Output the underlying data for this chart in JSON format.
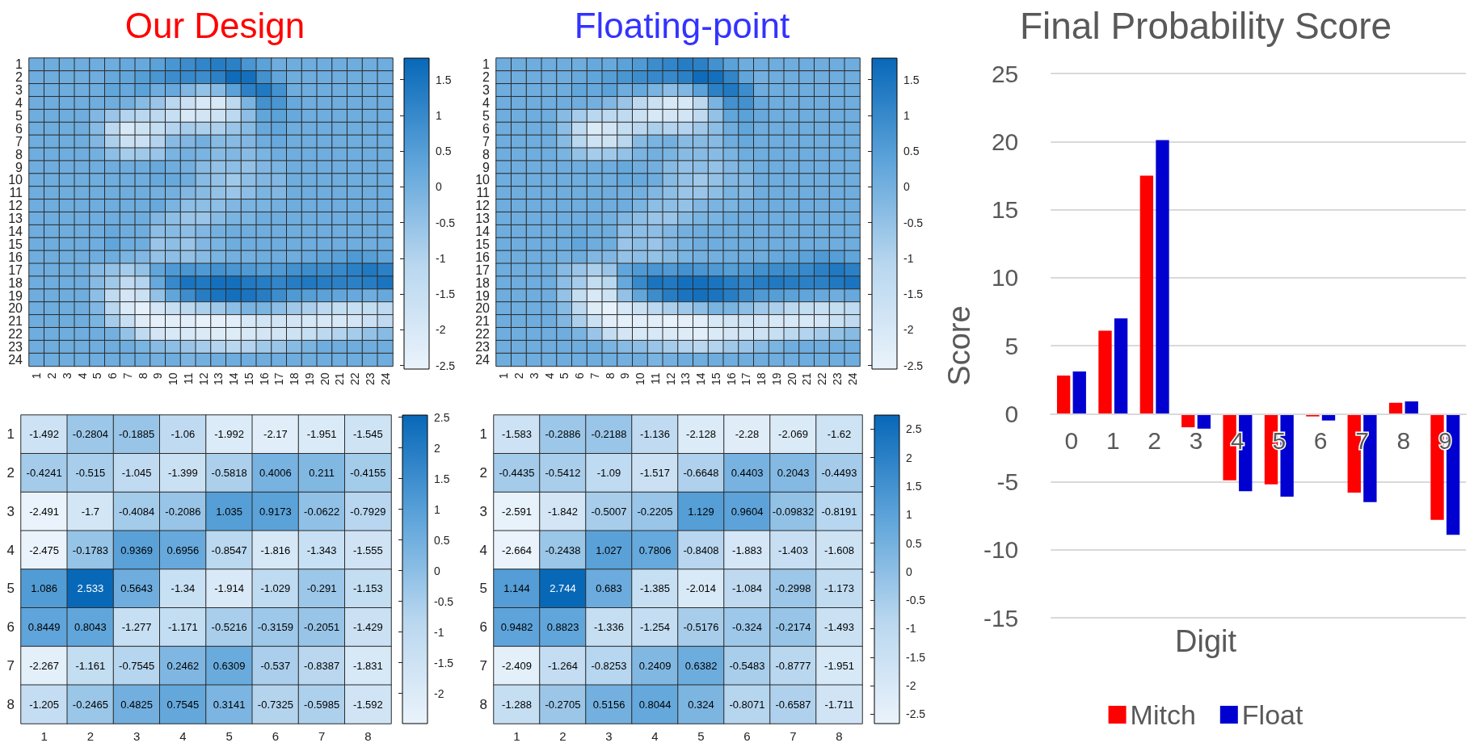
{
  "chart_data": [
    {
      "type": "heatmap",
      "title": "Our Design",
      "categories": [
        "1",
        "2",
        "3",
        "4",
        "5",
        "6",
        "7",
        "8",
        "9",
        "10",
        "11",
        "12",
        "13",
        "14",
        "15",
        "16",
        "17",
        "18",
        "19",
        "20",
        "21",
        "22",
        "23",
        "24"
      ],
      "y_categories": [
        "1",
        "2",
        "3",
        "4",
        "5",
        "6",
        "7",
        "8",
        "9",
        "10",
        "11",
        "12",
        "13",
        "14",
        "15",
        "16",
        "17",
        "18",
        "19",
        "20",
        "21",
        "22",
        "23",
        "24"
      ],
      "clim": [
        -2.55,
        1.8
      ],
      "cticks": [
        1.5,
        1,
        0.5,
        0,
        -0.5,
        -1,
        -1.5,
        -2,
        -2.5
      ],
      "cells": [
        [
          0.1,
          0.1,
          0.1,
          0.1,
          0.1,
          0.1,
          0.2,
          0.2,
          0.4,
          0.7,
          0.9,
          1.1,
          1.3,
          1.2,
          0.7,
          0.4,
          0.1,
          0.1,
          0.1,
          0.1,
          0.1,
          0.1,
          0.1,
          0.1
        ],
        [
          0.1,
          0.1,
          0.1,
          0.1,
          0.1,
          0.2,
          0.3,
          0.5,
          0.7,
          0.9,
          1.0,
          0.9,
          1.2,
          1.7,
          1.6,
          0.8,
          0.3,
          0.1,
          0.1,
          0.1,
          0.1,
          0.1,
          0.1,
          0.1
        ],
        [
          0.1,
          0.1,
          0.1,
          0.1,
          0.1,
          0.3,
          0.2,
          0.4,
          0.1,
          0.2,
          -0.2,
          -0.5,
          -0.3,
          0.4,
          1.2,
          1.4,
          0.8,
          0.1,
          0.1,
          0.1,
          0.1,
          0.1,
          0.1,
          0.1
        ],
        [
          0.1,
          0.1,
          0.1,
          0.1,
          0.1,
          0.1,
          0.0,
          -0.3,
          -0.6,
          -1.1,
          -1.6,
          -2.0,
          -2.0,
          -1.2,
          -0.1,
          0.8,
          0.7,
          0.2,
          0.1,
          0.1,
          0.1,
          0.1,
          0.1,
          0.1
        ],
        [
          0.1,
          0.1,
          0.1,
          0.1,
          -0.2,
          -0.6,
          -1.0,
          -1.1,
          -1.2,
          -1.5,
          -2.0,
          -1.8,
          -1.7,
          -1.2,
          -0.4,
          0.3,
          0.4,
          0.2,
          0.1,
          0.1,
          0.1,
          0.1,
          0.1,
          0.1
        ],
        [
          0.1,
          0.1,
          0.1,
          0.1,
          -0.3,
          -1.2,
          -2.0,
          -1.7,
          -1.4,
          -1.0,
          -0.8,
          -0.9,
          -0.9,
          -0.6,
          -0.3,
          0.2,
          0.3,
          0.1,
          0.1,
          0.1,
          0.1,
          0.1,
          0.1,
          0.1
        ],
        [
          0.1,
          0.1,
          0.1,
          0.1,
          -0.2,
          -0.9,
          -1.6,
          -1.6,
          -1.0,
          -0.3,
          -0.2,
          0.0,
          -0.3,
          -0.3,
          -0.2,
          0.1,
          0.2,
          0.1,
          0.1,
          0.1,
          0.1,
          0.1,
          0.1,
          0.1
        ],
        [
          0.1,
          0.1,
          0.1,
          0.1,
          0.0,
          -0.4,
          -0.8,
          -0.7,
          -0.6,
          -0.1,
          0.0,
          -0.1,
          -0.3,
          -0.2,
          -0.3,
          -0.1,
          0.1,
          0.1,
          0.1,
          0.1,
          0.1,
          0.1,
          0.1,
          0.1
        ],
        [
          0.1,
          0.1,
          0.1,
          0.1,
          0.1,
          0.1,
          0.1,
          0.1,
          0.2,
          0.1,
          0.0,
          -0.3,
          -0.5,
          -0.4,
          -0.5,
          -0.2,
          -0.1,
          0.1,
          0.1,
          0.1,
          0.1,
          0.1,
          0.1,
          0.1
        ],
        [
          0.1,
          0.1,
          0.1,
          0.1,
          0.1,
          0.1,
          0.1,
          0.1,
          0.2,
          0.2,
          0.1,
          -0.3,
          -0.5,
          -0.7,
          -0.4,
          -0.2,
          -0.2,
          0.1,
          0.1,
          0.1,
          0.1,
          0.1,
          0.1,
          0.1
        ],
        [
          0.1,
          0.1,
          0.1,
          0.1,
          0.1,
          0.1,
          0.1,
          0.1,
          0.0,
          0.0,
          -0.2,
          -0.3,
          -0.5,
          -0.6,
          -0.4,
          -0.1,
          -0.2,
          0.1,
          0.1,
          0.1,
          0.1,
          0.1,
          0.1,
          0.1
        ],
        [
          0.1,
          0.1,
          0.1,
          0.1,
          0.1,
          0.1,
          0.1,
          0.1,
          0.2,
          -0.1,
          -0.4,
          -0.4,
          -0.4,
          -0.2,
          -0.1,
          -0.1,
          0.0,
          0.1,
          0.1,
          0.1,
          0.1,
          0.1,
          0.1,
          0.1
        ],
        [
          0.1,
          0.1,
          0.1,
          0.1,
          0.1,
          0.1,
          0.1,
          0.1,
          -0.2,
          -0.4,
          -0.6,
          -0.6,
          -0.3,
          -0.1,
          -0.1,
          0.1,
          0.1,
          0.1,
          0.1,
          0.1,
          0.1,
          0.1,
          0.1,
          0.1
        ],
        [
          0.1,
          0.1,
          0.1,
          0.1,
          0.1,
          0.2,
          0.1,
          0.1,
          -0.4,
          -0.3,
          -0.4,
          -0.2,
          0.0,
          0.1,
          0.1,
          0.1,
          0.1,
          0.1,
          0.1,
          0.1,
          0.1,
          0.1,
          0.1,
          0.1
        ],
        [
          0.1,
          0.1,
          0.1,
          0.1,
          0.1,
          0.3,
          0.1,
          0.1,
          -0.6,
          -0.4,
          -0.6,
          -0.2,
          -0.1,
          0.1,
          0.1,
          0.1,
          0.1,
          0.1,
          0.1,
          0.1,
          0.1,
          0.1,
          0.1,
          0.1
        ],
        [
          0.1,
          0.1,
          0.1,
          0.1,
          0.1,
          0.1,
          -0.1,
          -0.2,
          -0.5,
          -0.4,
          -0.5,
          -0.3,
          -0.1,
          0.0,
          0.0,
          0.1,
          0.1,
          0.1,
          0.2,
          0.3,
          0.4,
          0.6,
          0.5,
          0.3
        ],
        [
          0.1,
          0.1,
          0.1,
          0.1,
          -0.3,
          -0.5,
          -0.8,
          -0.5,
          0.3,
          0.6,
          0.7,
          0.6,
          0.8,
          0.7,
          0.6,
          0.5,
          0.6,
          0.8,
          0.9,
          0.9,
          1.0,
          1.2,
          1.4,
          1.2
        ],
        [
          0.1,
          0.1,
          0.1,
          0.1,
          -0.3,
          -0.7,
          -1.3,
          -1.0,
          0.2,
          1.0,
          1.5,
          1.4,
          1.6,
          1.6,
          1.4,
          1.3,
          1.1,
          1.3,
          1.4,
          1.3,
          1.2,
          1.2,
          1.3,
          1.5
        ],
        [
          0.1,
          0.1,
          0.1,
          0.1,
          -0.4,
          -1.3,
          -1.9,
          -1.6,
          -0.5,
          0.3,
          0.9,
          1.3,
          1.5,
          1.6,
          1.5,
          1.3,
          0.9,
          0.6,
          0.5,
          0.4,
          0.3,
          0.2,
          0.1,
          0.2
        ],
        [
          0.1,
          0.1,
          0.1,
          0.1,
          -0.2,
          -1.1,
          -2.1,
          -2.4,
          -1.9,
          -1.5,
          -1.2,
          -0.9,
          -0.7,
          -0.4,
          -0.1,
          -0.1,
          -0.4,
          -0.7,
          -0.9,
          -1.2,
          -1.4,
          -1.5,
          -1.4,
          -1.3
        ],
        [
          0.1,
          0.1,
          0.1,
          0.1,
          -0.1,
          -0.8,
          -1.5,
          -2.2,
          -2.4,
          -2.3,
          -2.3,
          -2.5,
          -2.4,
          -2.3,
          -2.0,
          -1.8,
          -1.8,
          -1.9,
          -2.0,
          -2.0,
          -2.0,
          -1.9,
          -1.6,
          -1.3
        ],
        [
          0.1,
          0.1,
          0.1,
          0.1,
          0.1,
          0.0,
          -0.5,
          -1.3,
          -1.9,
          -2.0,
          -2.0,
          -2.1,
          -2.2,
          -2.2,
          -2.0,
          -1.9,
          -1.8,
          -1.7,
          -1.5,
          -1.2,
          -1.0,
          -0.8,
          -0.5,
          -0.3
        ],
        [
          0.1,
          0.1,
          0.1,
          0.1,
          0.1,
          0.1,
          0.1,
          -0.1,
          -0.3,
          -0.4,
          -0.6,
          -0.8,
          -1.0,
          -1.1,
          -1.0,
          -0.7,
          -0.6,
          -0.3,
          -0.1,
          0.1,
          0.1,
          0.1,
          0.1,
          0.1
        ],
        [
          0.1,
          0.1,
          0.1,
          0.1,
          0.1,
          0.1,
          0.1,
          0.1,
          0.0,
          0.1,
          -0.1,
          0.0,
          0.1,
          0.1,
          0.1,
          0.1,
          0.1,
          0.1,
          0.1,
          0.1,
          0.1,
          0.1,
          0.1,
          0.1
        ]
      ]
    },
    {
      "type": "heatmap",
      "title": "Floating-point",
      "categories": [
        "1",
        "2",
        "3",
        "4",
        "5",
        "6",
        "7",
        "8",
        "9",
        "10",
        "11",
        "12",
        "13",
        "14",
        "15",
        "16",
        "17",
        "18",
        "19",
        "20",
        "21",
        "22",
        "23",
        "24"
      ],
      "y_categories": [
        "1",
        "2",
        "3",
        "4",
        "5",
        "6",
        "7",
        "8",
        "9",
        "10",
        "11",
        "12",
        "13",
        "14",
        "15",
        "16",
        "17",
        "18",
        "19",
        "20",
        "21",
        "22",
        "23",
        "24"
      ],
      "clim": [
        -2.55,
        1.8
      ],
      "cticks": [
        1.5,
        1,
        0.5,
        0,
        -0.5,
        -1,
        -1.5,
        -2,
        -2.5
      ],
      "cells": [
        [
          0.1,
          0.1,
          0.1,
          0.1,
          0.1,
          0.1,
          0.2,
          0.2,
          0.4,
          0.6,
          0.9,
          1.1,
          1.3,
          1.2,
          0.8,
          0.4,
          0.1,
          0.1,
          0.1,
          0.1,
          0.1,
          0.1,
          0.1,
          0.1
        ],
        [
          0.1,
          0.1,
          0.1,
          0.1,
          0.1,
          0.2,
          0.3,
          0.5,
          0.7,
          0.9,
          1.0,
          1.0,
          1.2,
          1.7,
          1.6,
          1.1,
          0.3,
          0.0,
          0.1,
          0.1,
          0.1,
          0.1,
          0.1,
          0.1
        ],
        [
          0.1,
          0.1,
          0.1,
          0.1,
          0.1,
          0.3,
          0.2,
          0.4,
          0.1,
          0.2,
          -0.1,
          -0.4,
          -0.2,
          0.4,
          1.2,
          1.4,
          0.9,
          0.1,
          0.1,
          0.1,
          0.1,
          0.1,
          0.1,
          0.1
        ],
        [
          0.1,
          0.1,
          0.1,
          0.1,
          0.1,
          0.1,
          0.0,
          -0.2,
          -0.6,
          -1.2,
          -1.6,
          -2.0,
          -2.0,
          -1.2,
          -0.1,
          0.8,
          0.8,
          0.2,
          0.1,
          0.1,
          0.1,
          0.1,
          0.1,
          0.1
        ],
        [
          0.1,
          0.1,
          0.1,
          0.1,
          -0.3,
          -0.8,
          -1.1,
          -1.2,
          -1.3,
          -1.6,
          -2.0,
          -1.9,
          -1.8,
          -1.3,
          -0.5,
          0.3,
          0.4,
          0.2,
          0.1,
          0.1,
          0.1,
          0.1,
          0.1,
          0.1
        ],
        [
          0.1,
          0.1,
          0.1,
          0.1,
          -0.4,
          -1.3,
          -2.1,
          -1.8,
          -1.4,
          -1.1,
          -0.9,
          -1.0,
          -1.0,
          -0.7,
          -0.4,
          0.1,
          0.3,
          0.1,
          0.1,
          0.1,
          0.1,
          0.1,
          0.1,
          0.1
        ],
        [
          0.1,
          0.1,
          0.1,
          0.1,
          -0.3,
          -1.1,
          -1.7,
          -1.7,
          -1.1,
          -0.3,
          -0.1,
          0.0,
          -0.3,
          -0.3,
          -0.3,
          0.1,
          0.2,
          0.1,
          0.1,
          0.1,
          0.1,
          0.1,
          0.1,
          0.1
        ],
        [
          0.1,
          0.1,
          0.1,
          0.1,
          -0.1,
          -0.5,
          -0.8,
          -0.7,
          -0.5,
          -0.1,
          0.0,
          -0.1,
          -0.3,
          -0.3,
          -0.3,
          -0.1,
          0.1,
          0.1,
          0.1,
          0.1,
          0.1,
          0.1,
          0.1,
          0.1
        ],
        [
          0.1,
          0.1,
          0.1,
          0.1,
          0.1,
          0.1,
          0.1,
          0.1,
          0.2,
          0.1,
          0.0,
          -0.3,
          -0.5,
          -0.4,
          -0.5,
          -0.2,
          -0.1,
          0.1,
          0.1,
          0.1,
          0.1,
          0.1,
          0.1,
          0.1
        ],
        [
          0.1,
          0.1,
          0.1,
          0.1,
          0.1,
          0.1,
          0.1,
          0.1,
          0.2,
          0.2,
          0.1,
          -0.3,
          -0.5,
          -0.7,
          -0.5,
          -0.2,
          -0.2,
          0.1,
          0.1,
          0.1,
          0.1,
          0.1,
          0.1,
          0.1
        ],
        [
          0.1,
          0.1,
          0.1,
          0.1,
          0.1,
          0.1,
          0.1,
          0.1,
          0.0,
          0.0,
          -0.2,
          -0.4,
          -0.6,
          -0.6,
          -0.4,
          -0.1,
          -0.2,
          0.1,
          0.1,
          0.1,
          0.1,
          0.1,
          0.1,
          0.1
        ],
        [
          0.1,
          0.1,
          0.1,
          0.1,
          0.1,
          0.1,
          0.1,
          0.1,
          0.1,
          -0.1,
          -0.4,
          -0.4,
          -0.5,
          -0.2,
          -0.1,
          -0.1,
          0.0,
          0.1,
          0.1,
          0.1,
          0.1,
          0.1,
          0.1,
          0.1
        ],
        [
          0.1,
          0.1,
          0.1,
          0.1,
          0.1,
          0.1,
          0.1,
          0.0,
          -0.2,
          -0.4,
          -0.6,
          -0.6,
          -0.3,
          -0.1,
          -0.1,
          0.1,
          0.1,
          0.1,
          0.1,
          0.1,
          0.1,
          0.1,
          0.1,
          0.1
        ],
        [
          0.1,
          0.1,
          0.1,
          0.1,
          0.1,
          0.2,
          0.1,
          0.1,
          -0.4,
          -0.4,
          -0.4,
          -0.2,
          0.0,
          0.1,
          0.1,
          0.1,
          0.1,
          0.1,
          0.1,
          0.1,
          0.1,
          0.1,
          0.1,
          0.1
        ],
        [
          0.1,
          0.1,
          0.1,
          0.1,
          0.1,
          0.3,
          0.1,
          0.1,
          -0.6,
          -0.4,
          -0.6,
          -0.2,
          -0.1,
          0.1,
          0.1,
          0.1,
          0.1,
          0.1,
          0.1,
          0.1,
          0.1,
          0.1,
          0.1,
          0.1
        ],
        [
          0.1,
          0.1,
          0.1,
          0.1,
          0.0,
          0.1,
          -0.2,
          -0.2,
          -0.5,
          -0.4,
          -0.5,
          -0.3,
          -0.1,
          0.0,
          0.0,
          0.1,
          0.1,
          0.1,
          0.2,
          0.3,
          0.4,
          0.6,
          0.5,
          0.3
        ],
        [
          0.1,
          0.1,
          0.1,
          0.1,
          -0.3,
          -0.6,
          -0.9,
          -0.6,
          0.3,
          0.6,
          0.7,
          0.6,
          0.8,
          0.7,
          0.6,
          0.5,
          0.6,
          0.8,
          0.9,
          0.9,
          1.0,
          1.2,
          1.4,
          1.2
        ],
        [
          0.1,
          0.1,
          0.1,
          0.1,
          -0.4,
          -0.8,
          -1.4,
          -1.1,
          0.2,
          1.0,
          1.5,
          1.4,
          1.6,
          1.6,
          1.5,
          1.3,
          1.1,
          1.3,
          1.4,
          1.3,
          1.2,
          1.2,
          1.4,
          1.5
        ],
        [
          0.1,
          0.1,
          0.1,
          0.1,
          -0.5,
          -1.4,
          -2.0,
          -1.7,
          -0.5,
          0.3,
          0.9,
          1.3,
          1.5,
          1.6,
          1.5,
          1.3,
          0.9,
          0.6,
          0.5,
          0.4,
          0.3,
          0.2,
          0.1,
          0.2
        ],
        [
          0.1,
          0.1,
          0.1,
          0.1,
          -0.3,
          -1.2,
          -2.2,
          -2.5,
          -2.0,
          -1.6,
          -1.2,
          -0.9,
          -0.7,
          -0.4,
          -0.1,
          -0.1,
          -0.4,
          -0.7,
          -0.9,
          -1.2,
          -1.4,
          -1.5,
          -1.4,
          -1.3
        ],
        [
          0.1,
          0.1,
          0.1,
          0.1,
          -0.2,
          -0.9,
          -1.6,
          -2.3,
          -2.4,
          -2.3,
          -2.3,
          -2.5,
          -2.4,
          -2.3,
          -2.0,
          -1.8,
          -1.8,
          -1.9,
          -2.0,
          -2.0,
          -2.0,
          -1.9,
          -1.6,
          -1.3
        ],
        [
          0.1,
          0.1,
          0.1,
          0.1,
          0.1,
          -0.1,
          -0.6,
          -1.4,
          -1.9,
          -2.0,
          -2.0,
          -2.1,
          -2.2,
          -2.3,
          -2.1,
          -1.9,
          -1.8,
          -1.7,
          -1.5,
          -1.2,
          -1.0,
          -0.8,
          -0.5,
          -0.3
        ],
        [
          0.1,
          0.1,
          0.1,
          0.1,
          0.1,
          0.1,
          0.1,
          -0.1,
          -0.3,
          -0.4,
          -0.6,
          -0.8,
          -1.0,
          -1.1,
          -1.0,
          -0.7,
          -0.6,
          -0.3,
          -0.1,
          0.1,
          0.1,
          0.1,
          0.1,
          0.1
        ],
        [
          0.1,
          0.1,
          0.1,
          0.1,
          0.1,
          0.1,
          0.1,
          0.1,
          0.0,
          0.1,
          -0.1,
          0.0,
          0.1,
          0.1,
          0.1,
          0.1,
          0.1,
          0.1,
          0.1,
          0.1,
          0.1,
          0.1,
          0.1,
          0.1
        ]
      ]
    },
    {
      "type": "heatmap",
      "categories": [
        "1",
        "2",
        "3",
        "4",
        "5",
        "6",
        "7",
        "8"
      ],
      "y_categories": [
        "1",
        "2",
        "3",
        "4",
        "5",
        "6",
        "7",
        "8"
      ],
      "clim": [
        -2.491,
        2.533
      ],
      "cticks": [
        2.5,
        2,
        1.5,
        1,
        0.5,
        0,
        -0.5,
        -1,
        -1.5,
        -2
      ],
      "data_labels": true,
      "cells": [
        [
          -1.492,
          -0.2804,
          -0.1885,
          -1.06,
          -1.992,
          -2.17,
          -1.951,
          -1.545
        ],
        [
          -0.4241,
          -0.515,
          -1.045,
          -1.399,
          -0.5818,
          0.4006,
          0.211,
          -0.4155
        ],
        [
          -2.491,
          -1.7,
          -0.4084,
          -0.2086,
          1.035,
          0.9173,
          -0.0622,
          -0.7929
        ],
        [
          -2.475,
          -0.1783,
          0.9369,
          0.6956,
          -0.8547,
          -1.816,
          -1.343,
          -1.555
        ],
        [
          1.086,
          2.533,
          0.5643,
          -1.34,
          -1.914,
          -1.029,
          -0.291,
          -1.153
        ],
        [
          0.8449,
          0.8043,
          -1.277,
          -1.171,
          -0.5216,
          -0.3159,
          -0.2051,
          -1.429
        ],
        [
          -2.267,
          -1.161,
          -0.7545,
          0.2462,
          0.6309,
          -0.537,
          -0.8387,
          -1.831
        ],
        [
          -1.205,
          -0.2465,
          0.4825,
          0.7545,
          0.3141,
          -0.7325,
          -0.5985,
          -1.592
        ]
      ]
    },
    {
      "type": "heatmap",
      "categories": [
        "1",
        "2",
        "3",
        "4",
        "5",
        "6",
        "7",
        "8"
      ],
      "y_categories": [
        "1",
        "2",
        "3",
        "4",
        "5",
        "6",
        "7",
        "8"
      ],
      "clim": [
        -2.664,
        2.744
      ],
      "cticks": [
        2.5,
        2,
        1.5,
        1,
        0.5,
        0,
        -0.5,
        -1,
        -1.5,
        -2,
        -2.5
      ],
      "data_labels": true,
      "cells": [
        [
          -1.583,
          -0.2886,
          -0.2188,
          -1.136,
          -2.128,
          -2.28,
          -2.069,
          -1.62
        ],
        [
          -0.4435,
          -0.5412,
          -1.09,
          -1.517,
          -0.6648,
          0.4403,
          0.2043,
          -0.4493
        ],
        [
          -2.591,
          -1.842,
          -0.5007,
          -0.2205,
          1.129,
          0.9604,
          -0.09832,
          -0.8191
        ],
        [
          -2.664,
          -0.2438,
          1.027,
          0.7806,
          -0.8408,
          -1.883,
          -1.403,
          -1.608
        ],
        [
          1.144,
          2.744,
          0.683,
          -1.385,
          -2.014,
          -1.084,
          -0.2998,
          -1.173
        ],
        [
          0.9482,
          0.8823,
          -1.336,
          -1.254,
          -0.5176,
          -0.324,
          -0.2174,
          -1.493
        ],
        [
          -2.409,
          -1.264,
          -0.8253,
          0.2409,
          0.6382,
          -0.5483,
          -0.8777,
          -1.951
        ],
        [
          -1.288,
          -0.2705,
          0.5156,
          0.8044,
          0.324,
          -0.8071,
          -0.6587,
          -1.711
        ]
      ]
    },
    {
      "type": "bar",
      "title": "Final Probability Score",
      "xlabel": "Digit",
      "ylabel": "Score",
      "categories": [
        "0",
        "1",
        "2",
        "3",
        "4",
        "5",
        "6",
        "7",
        "8",
        "9"
      ],
      "series": [
        {
          "name": "Mitch",
          "color": "#ff0000",
          "values": [
            2.8,
            6.1,
            17.5,
            -1.0,
            -4.9,
            -5.2,
            -0.2,
            -5.8,
            0.8,
            -7.8
          ]
        },
        {
          "name": "Float",
          "color": "#0000d0",
          "values": [
            3.1,
            7.0,
            20.1,
            -1.1,
            -5.7,
            -6.1,
            -0.5,
            -6.5,
            0.9,
            -8.9
          ]
        }
      ],
      "ylim": [
        -15,
        25
      ],
      "yticks": [
        -15,
        -10,
        -5,
        0,
        5,
        10,
        15,
        20,
        25
      ],
      "grid": "y",
      "legend": "bottom"
    }
  ]
}
